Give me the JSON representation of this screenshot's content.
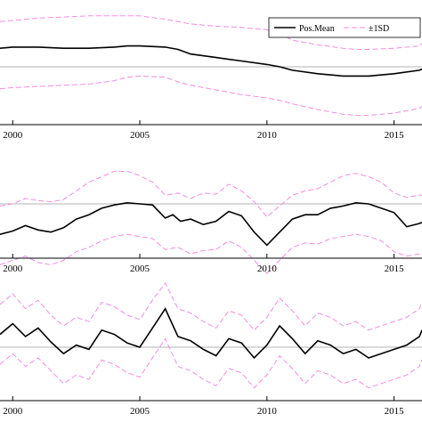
{
  "colors": {
    "mean": "#000000",
    "band": "#f28ce0",
    "ref": "#9a9a9a"
  },
  "legend": {
    "mean_label": "Pos.Mean",
    "band_label": "±1SD",
    "placement": "top-right"
  },
  "chart_data": [
    {
      "type": "line",
      "panel": "top",
      "x_ticks": [
        "2000",
        "2005",
        "2010",
        "2015"
      ],
      "xlim": [
        1999.5,
        2016.1
      ],
      "ylim": [
        0,
        1
      ],
      "ref_line": 0.5,
      "series": [
        {
          "name": "Pos.Mean",
          "x": [
            1999.5,
            2000,
            2001,
            2002,
            2003,
            2004,
            2004.5,
            2005,
            2006,
            2006.5,
            2007,
            2008,
            2009,
            2010,
            2010.5,
            2011,
            2012,
            2013,
            2013.5,
            2014,
            2015,
            2016,
            2016.1
          ],
          "values": [
            0.66,
            0.67,
            0.67,
            0.66,
            0.66,
            0.67,
            0.68,
            0.68,
            0.67,
            0.65,
            0.61,
            0.58,
            0.55,
            0.52,
            0.5,
            0.47,
            0.44,
            0.42,
            0.42,
            0.42,
            0.44,
            0.47,
            0.48
          ]
        },
        {
          "name": "±1SD",
          "x": [
            1999.5,
            2000,
            2001,
            2002,
            2003,
            2004,
            2004.5,
            2005,
            2006,
            2006.5,
            2007,
            2008,
            2009,
            2010,
            2010.5,
            2011,
            2012,
            2013,
            2013.5,
            2014,
            2015,
            2016,
            2016.1
          ],
          "values": [
            0.89,
            0.9,
            0.92,
            0.93,
            0.94,
            0.94,
            0.94,
            0.94,
            0.91,
            0.89,
            0.87,
            0.85,
            0.84,
            0.82,
            0.79,
            0.73,
            0.69,
            0.66,
            0.65,
            0.65,
            0.66,
            0.68,
            0.7
          ]
        },
        {
          "name": "±1SD",
          "x": [
            1999.5,
            2000,
            2001,
            2002,
            2003,
            2004,
            2004.5,
            2005,
            2006,
            2006.5,
            2007,
            2008,
            2009,
            2010,
            2010.5,
            2011,
            2012,
            2013,
            2013.5,
            2014,
            2015,
            2016,
            2016.1
          ],
          "values": [
            0.31,
            0.32,
            0.33,
            0.34,
            0.35,
            0.38,
            0.41,
            0.42,
            0.41,
            0.37,
            0.34,
            0.3,
            0.26,
            0.23,
            0.21,
            0.18,
            0.13,
            0.09,
            0.08,
            0.08,
            0.1,
            0.14,
            0.16
          ]
        }
      ]
    },
    {
      "type": "line",
      "panel": "middle",
      "x_ticks": [
        "2000",
        "2005",
        "2010",
        "2015"
      ],
      "xlim": [
        1999.5,
        2016.1
      ],
      "ylim": [
        0,
        1
      ],
      "ref_line": 0.5,
      "series": [
        {
          "name": "Pos.Mean",
          "x": [
            1999.5,
            2000,
            2000.5,
            2001,
            2001.5,
            2002,
            2002.5,
            2003,
            2003.5,
            2004,
            2004.5,
            2005,
            2005.5,
            2006,
            2006.3,
            2006.6,
            2007,
            2007.5,
            2008,
            2008.5,
            2009,
            2009.5,
            2010,
            2010.5,
            2011,
            2011.5,
            2012,
            2012.5,
            2013,
            2013.5,
            2014,
            2014.5,
            2015,
            2015.5,
            2016,
            2016.1
          ],
          "values": [
            0.22,
            0.25,
            0.3,
            0.26,
            0.24,
            0.28,
            0.36,
            0.4,
            0.46,
            0.49,
            0.51,
            0.5,
            0.49,
            0.37,
            0.4,
            0.34,
            0.36,
            0.31,
            0.34,
            0.43,
            0.39,
            0.24,
            0.12,
            0.24,
            0.36,
            0.4,
            0.4,
            0.46,
            0.48,
            0.51,
            0.5,
            0.46,
            0.42,
            0.29,
            0.32,
            0.33
          ]
        },
        {
          "name": "±1SD",
          "x": [
            1999.5,
            2000,
            2000.5,
            2001,
            2001.5,
            2002,
            2002.5,
            2003,
            2003.5,
            2004,
            2004.5,
            2005,
            2005.5,
            2006,
            2006.5,
            2007,
            2007.5,
            2008,
            2008.5,
            2009,
            2009.5,
            2010,
            2010.5,
            2011,
            2011.5,
            2012,
            2012.5,
            2013,
            2013.5,
            2014,
            2014.5,
            2015,
            2015.5,
            2016,
            2016.1
          ],
          "values": [
            0.48,
            0.5,
            0.55,
            0.53,
            0.52,
            0.54,
            0.62,
            0.7,
            0.75,
            0.8,
            0.8,
            0.76,
            0.7,
            0.58,
            0.6,
            0.55,
            0.6,
            0.59,
            0.68,
            0.62,
            0.52,
            0.38,
            0.48,
            0.58,
            0.62,
            0.64,
            0.7,
            0.76,
            0.78,
            0.75,
            0.7,
            0.6,
            0.56,
            0.58,
            0.58
          ]
        },
        {
          "name": "±1SD",
          "x": [
            1999.5,
            2000,
            2000.5,
            2001,
            2001.5,
            2002,
            2002.5,
            2003,
            2003.5,
            2004,
            2004.5,
            2005,
            2005.5,
            2006,
            2006.5,
            2007,
            2007.5,
            2008,
            2008.5,
            2009,
            2009.5,
            2010,
            2010.5,
            2011,
            2011.5,
            2012,
            2012.5,
            2013,
            2013.5,
            2014,
            2014.5,
            2015,
            2015.5,
            2016,
            2016.1
          ],
          "values": [
            -0.06,
            -0.02,
            0.02,
            -0.04,
            -0.06,
            -0.02,
            0.06,
            0.1,
            0.16,
            0.2,
            0.22,
            0.2,
            0.18,
            0.08,
            0.1,
            0.04,
            0.07,
            0.08,
            0.16,
            0.1,
            -0.02,
            -0.14,
            -0.02,
            0.1,
            0.14,
            0.13,
            0.18,
            0.2,
            0.22,
            0.2,
            0.16,
            0.06,
            0.02,
            0.04,
            0.05
          ]
        }
      ]
    },
    {
      "type": "line",
      "panel": "bottom",
      "x_ticks": [
        "2000",
        "2005",
        "2010",
        "2015"
      ],
      "xlim": [
        1999.5,
        2016.1
      ],
      "ylim": [
        0,
        1
      ],
      "ref_line": 0.5,
      "series": [
        {
          "name": "Pos.Mean",
          "x": [
            1999.5,
            2000,
            2000.5,
            2001,
            2001.5,
            2002,
            2002.5,
            2003,
            2003.5,
            2004,
            2004.5,
            2005,
            2005.5,
            2006,
            2006.5,
            2007,
            2007.5,
            2008,
            2008.5,
            2009,
            2009.5,
            2010,
            2010.5,
            2011,
            2011.5,
            2012,
            2012.5,
            2013,
            2013.5,
            2014,
            2014.5,
            2015,
            2015.5,
            2016,
            2016.1
          ],
          "values": [
            0.62,
            0.72,
            0.6,
            0.68,
            0.55,
            0.44,
            0.52,
            0.48,
            0.66,
            0.62,
            0.54,
            0.5,
            0.68,
            0.86,
            0.6,
            0.56,
            0.48,
            0.42,
            0.58,
            0.54,
            0.4,
            0.52,
            0.7,
            0.58,
            0.44,
            0.56,
            0.52,
            0.44,
            0.48,
            0.4,
            0.44,
            0.48,
            0.52,
            0.6,
            0.66
          ]
        },
        {
          "name": "±1SD",
          "x": [
            1999.5,
            2000,
            2000.5,
            2001,
            2001.5,
            2002,
            2002.5,
            2003,
            2003.5,
            2004,
            2004.5,
            2005,
            2005.5,
            2006,
            2006.5,
            2007,
            2007.5,
            2008,
            2008.5,
            2009,
            2009.5,
            2010,
            2010.5,
            2011,
            2011.5,
            2012,
            2012.5,
            2013,
            2013.5,
            2014,
            2014.5,
            2015,
            2015.5,
            2016,
            2016.1
          ],
          "values": [
            0.9,
            1.0,
            0.86,
            0.94,
            0.8,
            0.7,
            0.78,
            0.74,
            0.92,
            0.88,
            0.8,
            0.76,
            0.94,
            1.1,
            0.86,
            0.82,
            0.74,
            0.68,
            0.84,
            0.8,
            0.66,
            0.78,
            0.96,
            0.84,
            0.7,
            0.82,
            0.78,
            0.7,
            0.74,
            0.66,
            0.7,
            0.74,
            0.78,
            0.86,
            0.92
          ]
        },
        {
          "name": "±1SD",
          "x": [
            1999.5,
            2000,
            2000.5,
            2001,
            2001.5,
            2002,
            2002.5,
            2003,
            2003.5,
            2004,
            2004.5,
            2005,
            2005.5,
            2006,
            2006.5,
            2007,
            2007.5,
            2008,
            2008.5,
            2009,
            2009.5,
            2010,
            2010.5,
            2011,
            2011.5,
            2012,
            2012.5,
            2013,
            2013.5,
            2014,
            2014.5,
            2015,
            2015.5,
            2016,
            2016.1
          ],
          "values": [
            0.34,
            0.44,
            0.32,
            0.4,
            0.28,
            0.16,
            0.24,
            0.2,
            0.38,
            0.34,
            0.26,
            0.22,
            0.4,
            0.58,
            0.32,
            0.28,
            0.2,
            0.14,
            0.3,
            0.26,
            0.12,
            0.24,
            0.42,
            0.3,
            0.16,
            0.28,
            0.24,
            0.16,
            0.2,
            0.12,
            0.16,
            0.2,
            0.24,
            0.32,
            0.38
          ]
        }
      ]
    }
  ]
}
